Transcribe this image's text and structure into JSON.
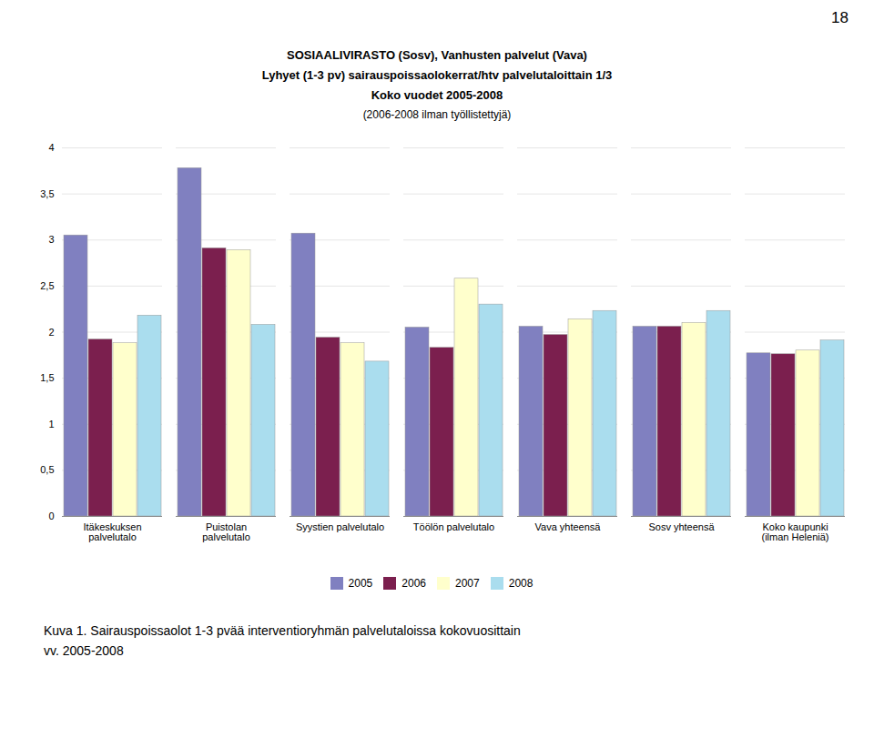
{
  "chart_data": {
    "type": "bar",
    "title": [
      "SOSIAALIVIRASTO (Sosv), Vanhusten palvelut (Vava)",
      "Lyhyet (1-3 pv) sairauspoissaolokerrat/htv palvelutaloittain 1/3",
      "Koko vuodet 2005-2008"
    ],
    "subtitle": "(2006-2008 ilman työllistettyjä)",
    "annotations": [
      "18"
    ],
    "caption": [
      "Kuva 1. Sairauspoissaolot 1-3 pvää interventioryhmän palvelutaloissa kokovuosittain",
      "vv. 2005-2008"
    ],
    "categories": [
      "Itäkeskuksen\npalvelutalo",
      "Puistolan\npalvelutalo",
      "Syystien palvelutalo",
      "Töölön palvelutalo",
      "Vava yhteensä",
      "Sosv yhteensä",
      "Koko kaupunki\n(ilman Heleniä)"
    ],
    "series": [
      {
        "name": "2005",
        "color": "#8080C0",
        "values": [
          3.05,
          3.78,
          3.07,
          2.05,
          2.06,
          2.06,
          1.77
        ]
      },
      {
        "name": "2006",
        "color": "#7B1F4E",
        "values": [
          1.92,
          2.91,
          1.94,
          1.83,
          1.97,
          2.06,
          1.76
        ]
      },
      {
        "name": "2007",
        "color": "#FFFFCC",
        "values": [
          1.88,
          2.89,
          1.88,
          2.58,
          2.14,
          2.1,
          1.8
        ]
      },
      {
        "name": "2008",
        "color": "#AADDEE",
        "values": [
          2.18,
          2.08,
          1.68,
          2.3,
          2.23,
          2.23,
          1.91
        ]
      }
    ],
    "ylim": [
      0,
      4
    ],
    "yticks": [
      0,
      {
        "value": 0.5,
        "label": "0,5"
      },
      1,
      {
        "value": 1.5,
        "label": "1,5"
      },
      2,
      {
        "value": 2.5,
        "label": "2,5"
      },
      3,
      {
        "value": 3.5,
        "label": "3,5"
      },
      4
    ],
    "grid": true,
    "legend": "bottom"
  }
}
